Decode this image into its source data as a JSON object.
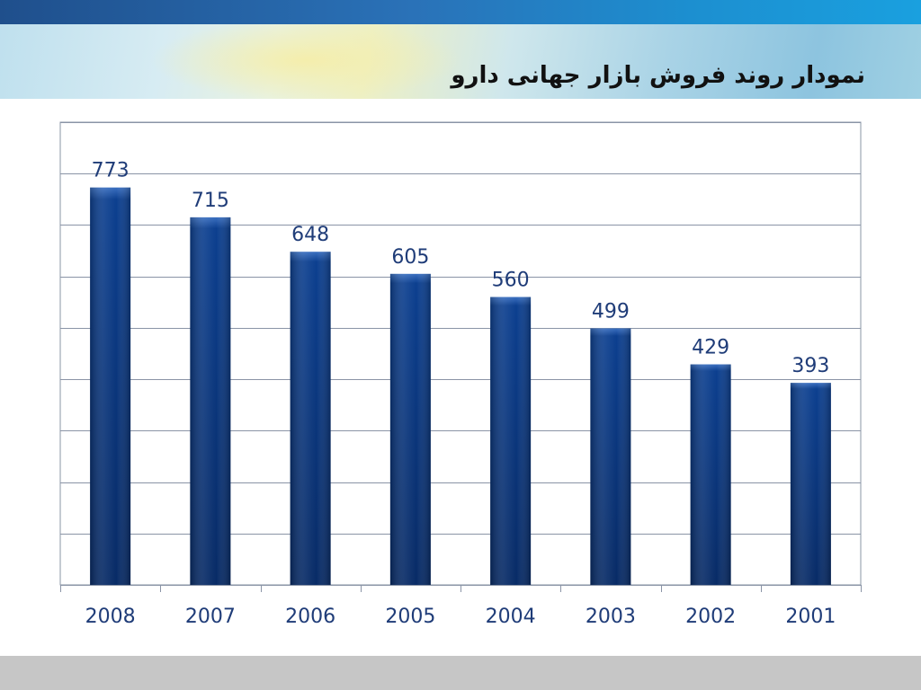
{
  "slide": {
    "title": "نمودار روند فروش بازار جهانی دارو"
  },
  "colors": {
    "bar_top": "#3a6fc0",
    "bar_mid": "#0c3f8f",
    "bar_bottom": "#082b66",
    "label": "#1f3c78",
    "grid": "#8a94a6"
  },
  "chart_data": {
    "type": "bar",
    "title": "",
    "xlabel": "",
    "ylabel": "",
    "categories": [
      "2008",
      "2007",
      "2006",
      "2005",
      "2004",
      "2003",
      "2002",
      "2001"
    ],
    "series": [
      {
        "values": [
          773,
          715,
          648,
          605,
          560,
          499,
          429,
          393
        ]
      }
    ],
    "ylim": [
      0,
      900
    ],
    "y_gridline_step": 100,
    "grid": true,
    "legend": "none",
    "data_labels": true
  }
}
